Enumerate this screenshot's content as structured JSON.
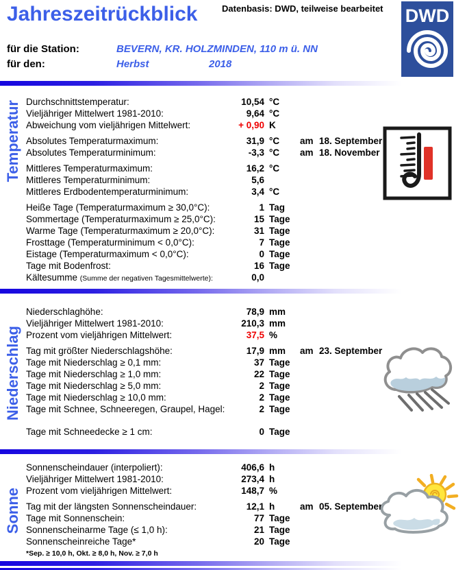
{
  "header": {
    "title": "Jahreszeitrückblick",
    "datasource": "Datenbasis: DWD, teilweise bearbeitet",
    "logo": {
      "text": "DWD",
      "icon": "dwd-spiral-logo"
    },
    "station_label": "für die Station:",
    "station_value": "BEVERN, KR. HOLZMINDEN, 110 m ü. NN",
    "period_label": "für den:",
    "period_season": "Herbst",
    "period_year": "2018"
  },
  "colors": {
    "accent_blue": "#3c5fe8",
    "logo_blue": "#2d4f9c",
    "value_red": "#ee0000",
    "bar_gradient_start": "#1606df",
    "thermometer_red": "#e03228"
  },
  "sections": [
    {
      "name": "Temperatur",
      "icon": "thermometer-icon",
      "groups": [
        {
          "rows": [
            {
              "label": "Durchschnittstemperatur:",
              "value": "10,54",
              "unit": "°C"
            },
            {
              "label": "Vieljähriger Mittelwert 1981-2010:",
              "value": "9,64",
              "unit": "°C"
            },
            {
              "label": "Abweichung vom vieljährigen Mittelwert:",
              "value": "+ 0,90",
              "unit": "K",
              "red": true
            }
          ]
        },
        {
          "rows": [
            {
              "label": "Absolutes Temperaturmaximum:",
              "value": "31,9",
              "unit": "°C",
              "date_prefix": "am",
              "date": "18. September"
            },
            {
              "label": "Absolutes Temperaturminimum:",
              "value": "-3,3",
              "unit": "°C",
              "date_prefix": "am",
              "date": "18. November"
            }
          ]
        },
        {
          "rows": [
            {
              "label": "Mittleres Temperaturmaximum:",
              "value": "16,2",
              "unit": "°C"
            },
            {
              "label": "Mittleres Temperaturminimum:",
              "value": "5,6",
              "unit": ""
            },
            {
              "label": "Mittleres Erdbodentemperaturminimum:",
              "value": "3,4",
              "unit": "°C"
            }
          ]
        },
        {
          "rows": [
            {
              "label": "Heiße Tage (Temperaturmaximum ≥ 30,0°C):",
              "value": "1",
              "unit": "Tag"
            },
            {
              "label": "Sommertage (Temperaturmaximum ≥ 25,0°C):",
              "value": "15",
              "unit": "Tage"
            },
            {
              "label": "Warme Tage (Temperaturmaximum ≥ 20,0°C):",
              "value": "31",
              "unit": "Tage"
            },
            {
              "label": "Frosttage (Temperaturminimum < 0,0°C):",
              "value": "7",
              "unit": "Tage"
            },
            {
              "label": "Eistage (Temperaturmaximum < 0,0°C):",
              "value": "0",
              "unit": "Tage"
            },
            {
              "label": "Tage mit Bodenfrost:",
              "value": "16",
              "unit": "Tage"
            },
            {
              "label": "Kältesumme",
              "label_small": "(Summe der negativen Tagesmittelwerte):",
              "value": "0,0",
              "unit": ""
            }
          ]
        }
      ]
    },
    {
      "name": "Niederschlag",
      "icon": "rain-cloud-icon",
      "groups": [
        {
          "rows": [
            {
              "label": "Niederschlaghöhe:",
              "value": "78,9",
              "unit": "mm"
            },
            {
              "label": "Vieljähriger Mittelwert 1981-2010:",
              "value": "210,3",
              "unit": "mm"
            },
            {
              "label": "Prozent vom vieljährigen Mittelwert:",
              "value": "37,5",
              "unit": "%",
              "red": true
            }
          ]
        },
        {
          "rows": [
            {
              "label": "Tag mit größter Niederschlagshöhe:",
              "value": "17,9",
              "unit": "mm",
              "date_prefix": "am",
              "date": "23. September"
            },
            {
              "label": "Tage mit Niederschlag ≥ 0,1 mm:",
              "value": "37",
              "unit": "Tage"
            },
            {
              "label": "Tage mit Niederschlag ≥ 1,0 mm:",
              "value": "22",
              "unit": "Tage"
            },
            {
              "label": "Tage mit Niederschlag ≥ 5,0 mm:",
              "value": "2",
              "unit": "Tage"
            },
            {
              "label": "Tage mit Niederschlag ≥ 10,0 mm:",
              "value": "2",
              "unit": "Tage"
            },
            {
              "label": "Tage mit Schnee, Schneeregen, Graupel, Hagel:",
              "value": "2",
              "unit": "Tage"
            }
          ]
        },
        {
          "rows": [
            {
              "label": "Tage mit Schneedecke ≥ 1 cm:",
              "value": "0",
              "unit": "Tage"
            }
          ]
        }
      ]
    },
    {
      "name": "Sonne",
      "icon": "sun-cloud-icon",
      "groups": [
        {
          "rows": [
            {
              "label": "Sonnenscheindauer (interpoliert):",
              "value": "406,6",
              "unit": "h"
            },
            {
              "label": "Vieljähriger Mittelwert 1981-2010:",
              "value": "273,4",
              "unit": "h"
            },
            {
              "label": "Prozent vom vieljährigen Mittelwert:",
              "value": "148,7",
              "unit": "%"
            }
          ]
        },
        {
          "rows": [
            {
              "label": "Tag mit der längsten Sonnenscheindauer:",
              "value": "12,1",
              "unit": "h",
              "date_prefix": "am",
              "date": "05. September"
            },
            {
              "label": "Tage mit Sonnenschein:",
              "value": "77",
              "unit": "Tage"
            },
            {
              "label": "Sonnenscheinarme Tage (≤ 1,0 h):",
              "value": "21",
              "unit": "Tage"
            },
            {
              "label": "Sonnenscheinreiche Tage*",
              "value": "20",
              "unit": "Tage"
            }
          ]
        }
      ],
      "footnote": "*Sep. ≥ 10,0 h, Okt. ≥ 8,0 h, Nov. ≥ 7,0 h"
    }
  ]
}
